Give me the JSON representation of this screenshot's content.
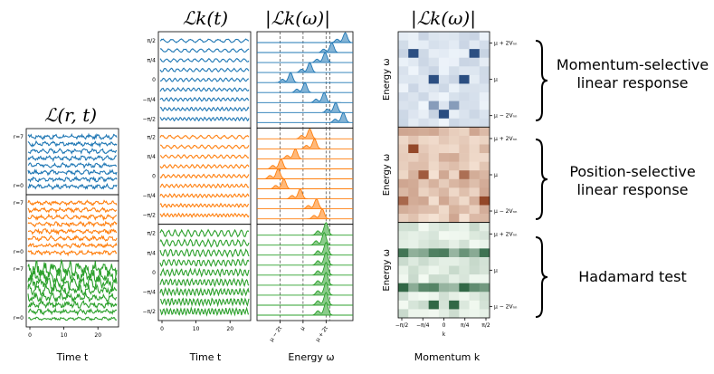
{
  "chart_data": {
    "type": "line",
    "titles": {
      "position_time": "ℒ(r, t)",
      "momentum_time": "ℒk(t)",
      "momentum_energy": "|ℒk(ω)|",
      "heatmap": "|ℒk(ω)|"
    },
    "xlabels": {
      "position_time": "Time t",
      "momentum_time": "Time t",
      "momentum_energy": "Energy ω",
      "heatmap": "Momentum k"
    },
    "heatmap_ylabel": "Energy ω",
    "heatmap_xlabel_small": "k",
    "time_ticks": [
      "0",
      "10",
      "20"
    ],
    "time_range": [
      0,
      25
    ],
    "position_ticks": [
      "r=7",
      "r=0"
    ],
    "k_ticks": [
      "π/2",
      "π/4",
      "0",
      "−π/4",
      "−π/2"
    ],
    "k_ticks_bottom": [
      "−π/2",
      "−π/4",
      "0",
      "π/4",
      "π/2"
    ],
    "energy_ticks": [
      "μ − 2t",
      "μ",
      "μ + 2t"
    ],
    "heat_energy_ticks": [
      "μ + 2Vₙₙ",
      "μ",
      "μ − 2Vₙₙ"
    ],
    "series": [
      {
        "name": "Momentum-selective linear response",
        "color": "#1f77b4",
        "colormap": "Blues",
        "peaks": [
          0.92,
          0.78,
          0.71,
          0.55,
          0.35,
          0.5,
          0.7,
          0.82,
          0.9
        ]
      },
      {
        "name": "Position-selective linear response",
        "color": "#ff7f0e",
        "colormap": "Oranges",
        "peaks": [
          0.55,
          0.6,
          0.4,
          0.25,
          0.22,
          0.28,
          0.45,
          0.62,
          0.68
        ]
      },
      {
        "name": "Hadamard test",
        "color": "#2ca02c",
        "colormap": "Greens",
        "peaks": [
          0.72,
          0.7,
          0.72,
          0.72,
          0.72,
          0.72,
          0.72,
          0.72,
          0.72
        ]
      }
    ]
  },
  "rows": [
    {
      "label": "Momentum-selective linear response"
    },
    {
      "label": "Position-selective linear response"
    },
    {
      "label": "Hadamard test"
    }
  ]
}
